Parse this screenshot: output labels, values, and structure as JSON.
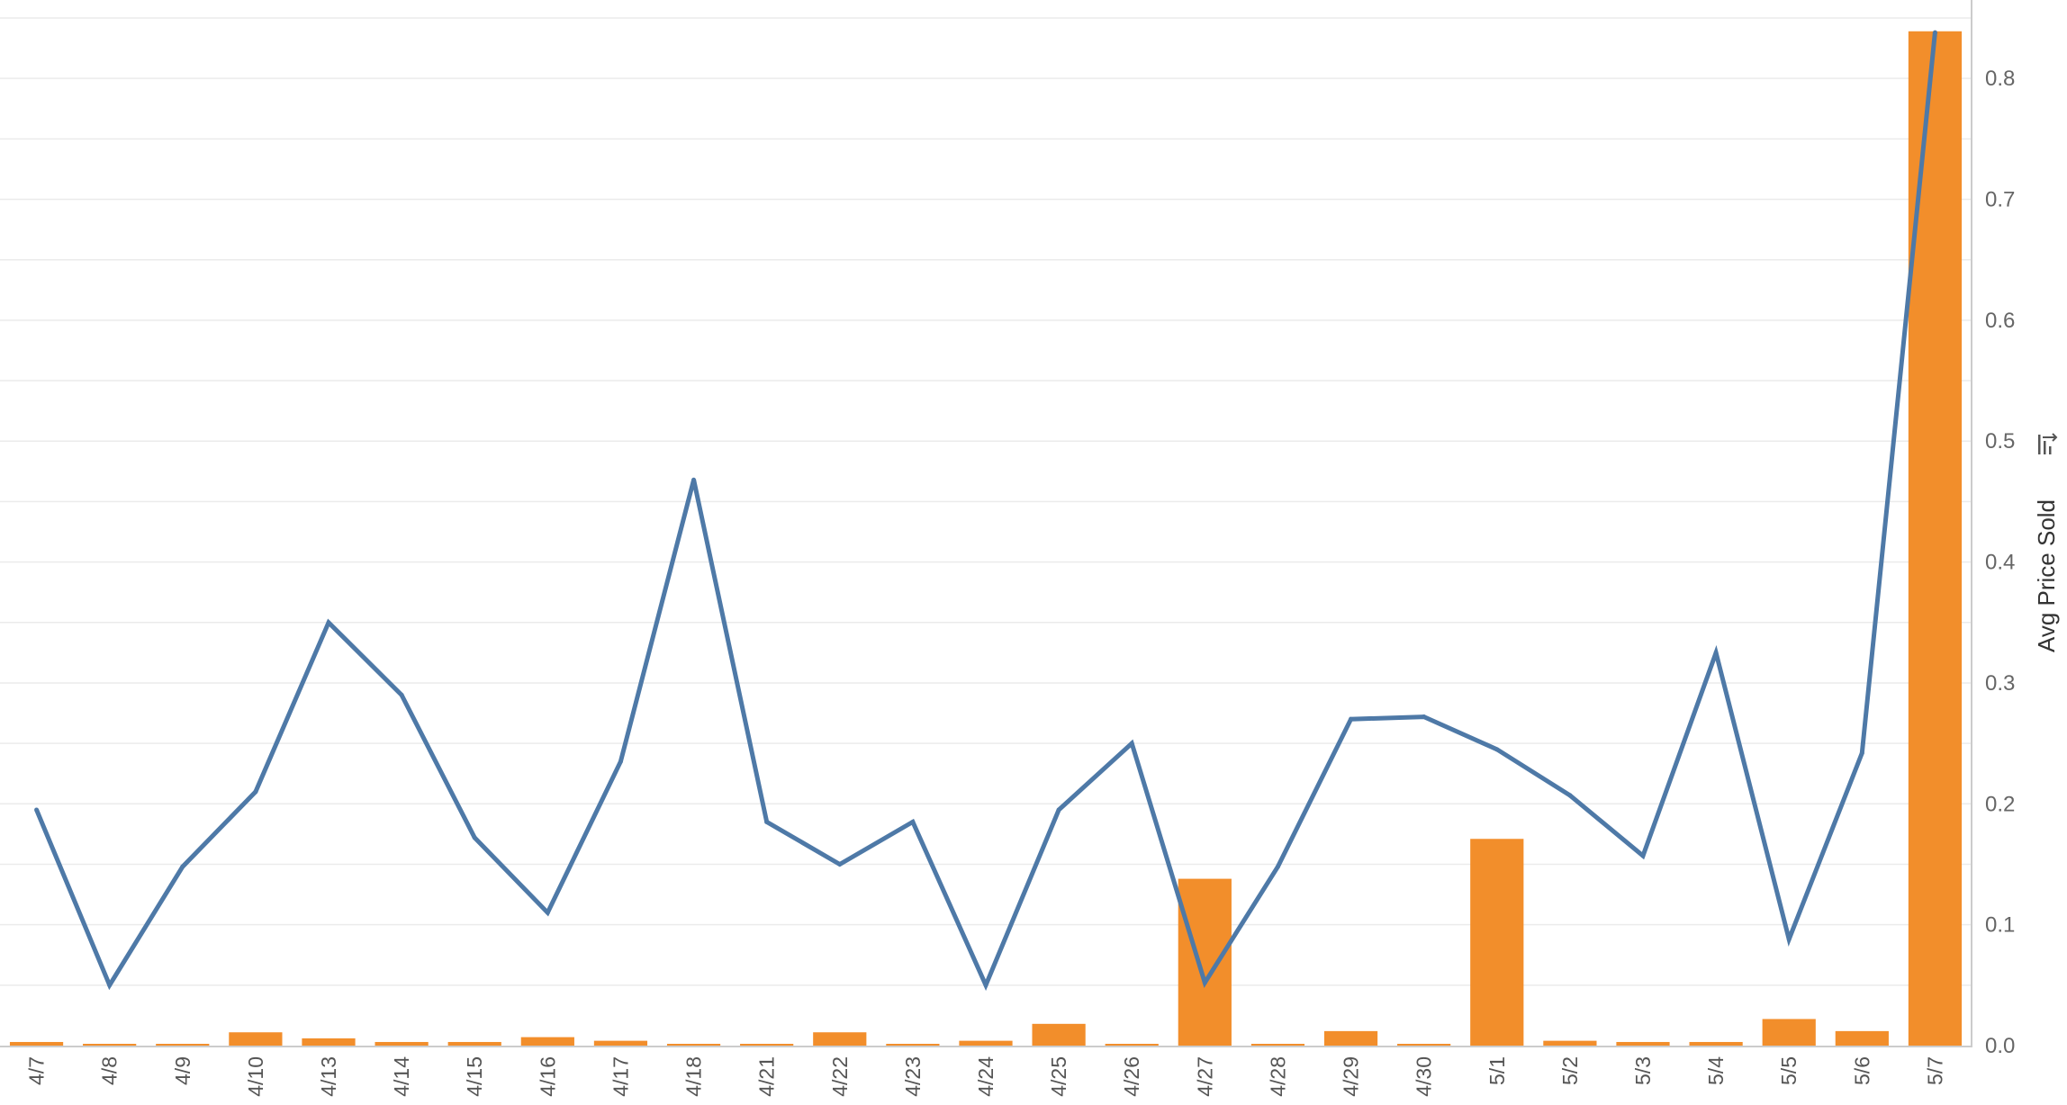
{
  "chart_data": {
    "type": "bar",
    "categories": [
      "4/7",
      "4/8",
      "4/9",
      "4/10",
      "4/13",
      "4/14",
      "4/15",
      "4/16",
      "4/17",
      "4/18",
      "4/21",
      "4/22",
      "4/23",
      "4/24",
      "4/25",
      "4/26",
      "4/27",
      "4/28",
      "4/29",
      "4/30",
      "5/1",
      "5/2",
      "5/3",
      "5/4",
      "5/5",
      "5/6",
      "5/7"
    ],
    "series": [
      {
        "type": "bar",
        "color": "#f28e2b",
        "values": [
          0.003,
          0.001,
          0.001,
          0.011,
          0.006,
          0.003,
          0.003,
          0.007,
          0.004,
          0.001,
          0.001,
          0.011,
          0.001,
          0.004,
          0.018,
          0.001,
          0.138,
          0.001,
          0.012,
          0.001,
          0.171,
          0.004,
          0.003,
          0.003,
          0.022,
          0.012,
          0.839
        ]
      },
      {
        "type": "line",
        "color": "#4e79a7",
        "values": [
          0.195,
          0.05,
          0.148,
          0.21,
          0.35,
          0.29,
          0.172,
          0.11,
          0.235,
          0.468,
          0.185,
          0.15,
          0.185,
          0.05,
          0.195,
          0.25,
          0.052,
          0.148,
          0.27,
          0.272,
          0.245,
          0.207,
          0.157,
          0.325,
          0.088,
          0.242,
          0.838
        ]
      }
    ],
    "ylabel": "Avg Price Sold",
    "ylim": [
      0,
      0.85
    ],
    "y_ticks": [
      "0.0",
      "0.1",
      "0.2",
      "0.3",
      "0.4",
      "0.5",
      "0.6",
      "0.7",
      "0.8"
    ],
    "y_axis_side": "right",
    "grid": true,
    "legend": "none",
    "sort_icon": "sort-descending-icon"
  }
}
